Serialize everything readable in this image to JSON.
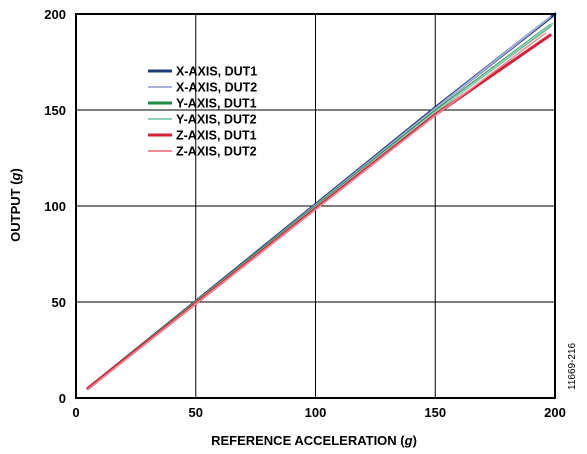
{
  "chart_data": {
    "type": "line",
    "xlabel_prefix": "REFERENCE ACCELERATION (",
    "xlabel_unit": "g",
    "xlabel_suffix": ")",
    "ylabel_prefix": "OUTPUT (",
    "ylabel_unit": "g",
    "ylabel_suffix": ")",
    "xlim": [
      0,
      200
    ],
    "ylim": [
      0,
      200
    ],
    "xticks": [
      0,
      50,
      100,
      150,
      200
    ],
    "yticks": [
      0,
      50,
      100,
      150,
      200
    ],
    "grid": true,
    "legend_position": "top-left",
    "figure_id": "11669-216",
    "series": [
      {
        "name": "X-AXIS, DUT1",
        "color": "#1f3d7a",
        "width": 3,
        "x": [
          5,
          50,
          100,
          150,
          200
        ],
        "y": [
          5,
          50.3,
          100.8,
          151.2,
          200
        ]
      },
      {
        "name": "X-AXIS, DUT2",
        "color": "#a7b0d8",
        "width": 2,
        "x": [
          5,
          50,
          100,
          150,
          198
        ],
        "y": [
          5,
          50.2,
          100.4,
          150.8,
          198.5
        ]
      },
      {
        "name": "Y-AXIS, DUT1",
        "color": "#1e8a45",
        "width": 3,
        "x": [
          5,
          50,
          100,
          150,
          198
        ],
        "y": [
          5,
          50,
          99.6,
          149.3,
          194
        ]
      },
      {
        "name": "Y-AXIS, DUT2",
        "color": "#8fd1b5",
        "width": 2,
        "x": [
          5,
          50,
          100,
          150,
          199
        ],
        "y": [
          5,
          49.9,
          99.4,
          149,
          195
        ]
      },
      {
        "name": "Z-AXIS, DUT1",
        "color": "#d6203a",
        "width": 3,
        "x": [
          5,
          50,
          100,
          150,
          198
        ],
        "y": [
          5,
          49.3,
          98.6,
          147.6,
          189
        ]
      },
      {
        "name": "Z-AXIS, DUT2",
        "color": "#f08a94",
        "width": 1.5,
        "x": [
          5,
          50,
          100,
          150,
          196
        ],
        "y": [
          4.6,
          49,
          98.2,
          147.2,
          190
        ]
      }
    ]
  }
}
